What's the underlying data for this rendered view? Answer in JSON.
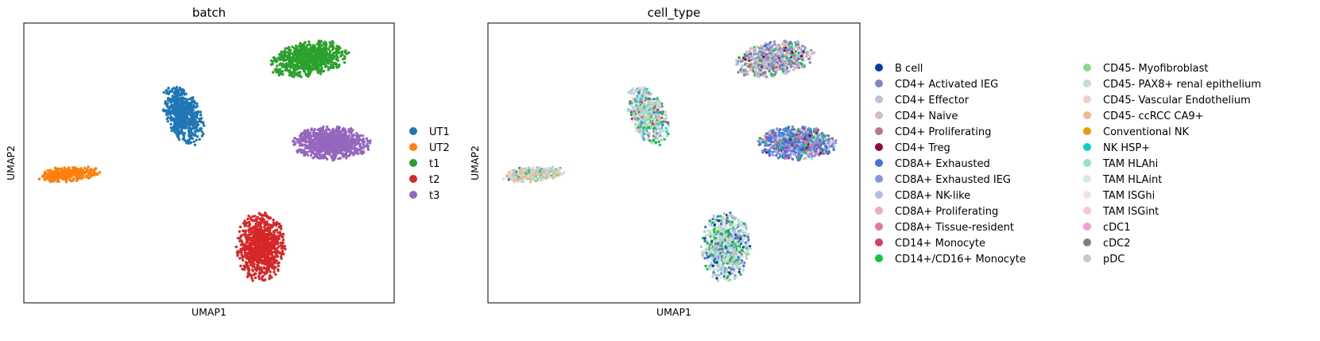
{
  "chart_data": [
    {
      "type": "scatter",
      "title": "batch",
      "xlabel": "UMAP1",
      "ylabel": "UMAP2",
      "grid": false,
      "ticks": false,
      "legend_position": "right",
      "series": [
        {
          "name": "UT1",
          "color": "#1f77b4",
          "cluster": {
            "cx": 4.3,
            "cy": 6.7,
            "rx": 0.55,
            "ry": 1.0,
            "n": 650
          }
        },
        {
          "name": "UT2",
          "color": "#ff7f0e",
          "cluster": {
            "cx": 1.2,
            "cy": 4.6,
            "rx": 0.85,
            "ry": 0.28,
            "n": 350
          }
        },
        {
          "name": "t1",
          "color": "#2ca02c",
          "cluster": {
            "cx": 7.7,
            "cy": 8.7,
            "rx": 1.05,
            "ry": 0.65,
            "n": 800
          }
        },
        {
          "name": "t2",
          "color": "#d62728",
          "cluster": {
            "cx": 6.4,
            "cy": 2.0,
            "rx": 0.65,
            "ry": 1.25,
            "n": 900
          }
        },
        {
          "name": "t3",
          "color": "#9467bd",
          "cluster": {
            "cx": 8.3,
            "cy": 5.7,
            "rx": 1.05,
            "ry": 0.6,
            "n": 900
          }
        }
      ]
    },
    {
      "type": "scatter",
      "title": "cell_type",
      "xlabel": "UMAP1",
      "ylabel": "UMAP2",
      "grid": false,
      "ticks": false,
      "legend_position": "right",
      "series": [
        {
          "name": "B cell",
          "color": "#023fa5"
        },
        {
          "name": "CD4+ Activated IEG",
          "color": "#7d87b9"
        },
        {
          "name": "CD4+ Effector",
          "color": "#bec1d4"
        },
        {
          "name": "CD4+ Naive",
          "color": "#d6bcc0"
        },
        {
          "name": "CD4+ Proliferating",
          "color": "#bb7784"
        },
        {
          "name": "CD4+ Treg",
          "color": "#8e063b"
        },
        {
          "name": "CD8A+ Exhausted",
          "color": "#4a6fe3"
        },
        {
          "name": "CD8A+ Exhausted IEG",
          "color": "#8595e1"
        },
        {
          "name": "CD8A+ NK-like",
          "color": "#b5bbe3"
        },
        {
          "name": "CD8A+ Proliferating",
          "color": "#e6afb9"
        },
        {
          "name": "CD8A+ Tissue-resident",
          "color": "#e07b91"
        },
        {
          "name": "CD14+ Monocyte",
          "color": "#d33f6a"
        },
        {
          "name": "CD14+/CD16+ Monocyte",
          "color": "#11c638"
        },
        {
          "name": "CD45- Myofibroblast",
          "color": "#8dd593"
        },
        {
          "name": "CD45- PAX8+ renal epithelium",
          "color": "#c6dec7"
        },
        {
          "name": "CD45- Vascular Endothelium",
          "color": "#ead3c6"
        },
        {
          "name": "CD45- ccRCC CA9+",
          "color": "#f0b98d"
        },
        {
          "name": "Conventional NK",
          "color": "#ef9708"
        },
        {
          "name": "NK HSP+",
          "color": "#0fcfc0"
        },
        {
          "name": "TAM HLAhi",
          "color": "#9cded6"
        },
        {
          "name": "TAM HLAint",
          "color": "#d5eae7"
        },
        {
          "name": "TAM ISGhi",
          "color": "#f3e1eb"
        },
        {
          "name": "TAM ISGint",
          "color": "#f6c4e1"
        },
        {
          "name": "cDC1",
          "color": "#f79cd4"
        },
        {
          "name": "cDC2",
          "color": "#7f7f7f"
        },
        {
          "name": "pDC",
          "color": "#c7c7c7"
        }
      ]
    }
  ]
}
